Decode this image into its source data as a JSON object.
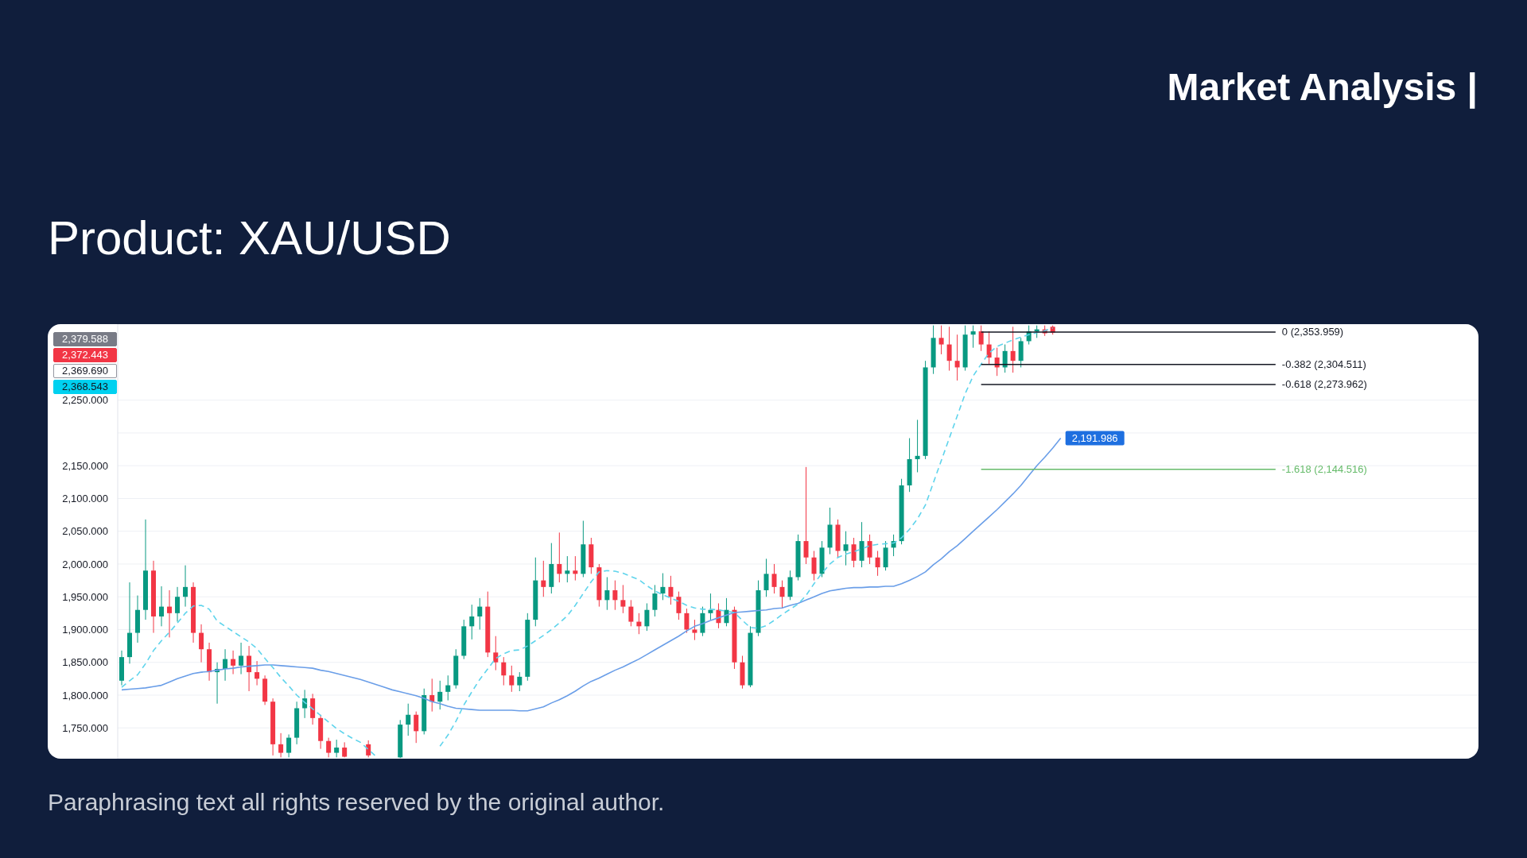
{
  "chart_data": {
    "type": "candlestick",
    "title": "Market Analysis |",
    "subtitle": "Product: XAU/USD",
    "categories": [
      null,
      null,
      null,
      null,
      null,
      null,
      null,
      null,
      null,
      null,
      null,
      null,
      null,
      null,
      null,
      null,
      null,
      null,
      null,
      null,
      null,
      null,
      null,
      null,
      null,
      null,
      null,
      null,
      null,
      null,
      null,
      null,
      null,
      null,
      null,
      null,
      null,
      null,
      null,
      null,
      null,
      null,
      null,
      null,
      null,
      null,
      null,
      null,
      null,
      null,
      null,
      null,
      null,
      null,
      null,
      null,
      null,
      null,
      null,
      null,
      null,
      null,
      null,
      null,
      null,
      null,
      null,
      null,
      null,
      null,
      null,
      null,
      null,
      null,
      null,
      null,
      null,
      null,
      null,
      null,
      null,
      null,
      null,
      null,
      null,
      null,
      null,
      null,
      null,
      null,
      null,
      null,
      null,
      null,
      null,
      null,
      null,
      null,
      null,
      null,
      null,
      null,
      null,
      null,
      null,
      null,
      null,
      null,
      null,
      null,
      null,
      null,
      null,
      null,
      null,
      null,
      null,
      null,
      null,
      null,
      null,
      null,
      null,
      null,
      null,
      null,
      null,
      null,
      null,
      null,
      null,
      null,
      null,
      null,
      null,
      null,
      null,
      null,
      null,
      null,
      null,
      null,
      null,
      null,
      null,
      null,
      null,
      null,
      null,
      null,
      null,
      null,
      null,
      null,
      null,
      null,
      null,
      null,
      null,
      null,
      null,
      null,
      null,
      null,
      null,
      null,
      null,
      null,
      null,
      null,
      null
    ],
    "ohlc": [
      [
        1822,
        1868,
        1815,
        1858
      ],
      [
        1858,
        1972,
        1848,
        1895
      ],
      [
        1895,
        1952,
        1880,
        1930
      ],
      [
        1930,
        2068,
        1915,
        1990
      ],
      [
        1990,
        2005,
        1895,
        1920
      ],
      [
        1920,
        1966,
        1905,
        1935
      ],
      [
        1935,
        1960,
        1888,
        1925
      ],
      [
        1925,
        1965,
        1912,
        1950
      ],
      [
        1950,
        1998,
        1935,
        1965
      ],
      [
        1965,
        1972,
        1880,
        1895
      ],
      [
        1895,
        1908,
        1850,
        1870
      ],
      [
        1870,
        1880,
        1822,
        1835
      ],
      [
        1835,
        1850,
        1787,
        1840
      ],
      [
        1840,
        1870,
        1822,
        1855
      ],
      [
        1855,
        1868,
        1832,
        1845
      ],
      [
        1845,
        1880,
        1832,
        1860
      ],
      [
        1860,
        1875,
        1806,
        1835
      ],
      [
        1835,
        1852,
        1815,
        1825
      ],
      [
        1825,
        1830,
        1785,
        1790
      ],
      [
        1790,
        1795,
        1708,
        1725
      ],
      [
        1725,
        1742,
        1705,
        1712
      ],
      [
        1712,
        1740,
        1705,
        1735
      ],
      [
        1735,
        1790,
        1725,
        1780
      ],
      [
        1780,
        1808,
        1765,
        1795
      ],
      [
        1795,
        1802,
        1755,
        1765
      ],
      [
        1765,
        1770,
        1718,
        1730
      ],
      [
        1730,
        1735,
        1705,
        1712
      ],
      [
        1712,
        1732,
        1705,
        1720
      ],
      [
        1720,
        1728,
        1705,
        1706
      ],
      null,
      null,
      [
        1725,
        1731,
        1705,
        1708
      ],
      null,
      null,
      null,
      [
        1705,
        1762,
        1704,
        1755
      ],
      [
        1755,
        1787,
        1738,
        1770
      ],
      [
        1770,
        1775,
        1727,
        1745
      ],
      [
        1745,
        1810,
        1740,
        1800
      ],
      [
        1800,
        1825,
        1775,
        1790
      ],
      [
        1790,
        1822,
        1778,
        1805
      ],
      [
        1805,
        1830,
        1792,
        1815
      ],
      [
        1815,
        1870,
        1810,
        1860
      ],
      [
        1860,
        1915,
        1855,
        1905
      ],
      [
        1905,
        1938,
        1885,
        1920
      ],
      [
        1920,
        1948,
        1900,
        1935
      ],
      [
        1935,
        1958,
        1858,
        1865
      ],
      [
        1865,
        1890,
        1838,
        1850
      ],
      [
        1850,
        1858,
        1815,
        1830
      ],
      [
        1830,
        1845,
        1805,
        1815
      ],
      [
        1815,
        1835,
        1806,
        1828
      ],
      [
        1828,
        1925,
        1822,
        1915
      ],
      [
        1915,
        2010,
        1905,
        1975
      ],
      [
        1975,
        2005,
        1950,
        1965
      ],
      [
        1965,
        2032,
        1955,
        2000
      ],
      [
        2000,
        2048,
        1972,
        1985
      ],
      [
        1985,
        2012,
        1972,
        1990
      ],
      [
        1990,
        2012,
        1975,
        1985
      ],
      [
        1985,
        2066,
        1980,
        2030
      ],
      [
        2030,
        2040,
        1985,
        1995
      ],
      [
        1995,
        2000,
        1935,
        1945
      ],
      [
        1945,
        1980,
        1930,
        1960
      ],
      [
        1960,
        1975,
        1930,
        1945
      ],
      [
        1945,
        1968,
        1925,
        1935
      ],
      [
        1935,
        1945,
        1905,
        1912
      ],
      [
        1912,
        1925,
        1893,
        1905
      ],
      [
        1905,
        1940,
        1898,
        1930
      ],
      [
        1930,
        1968,
        1920,
        1955
      ],
      [
        1955,
        1986,
        1945,
        1965
      ],
      [
        1965,
        1982,
        1938,
        1950
      ],
      [
        1950,
        1958,
        1915,
        1925
      ],
      [
        1925,
        1932,
        1895,
        1900
      ],
      [
        1900,
        1915,
        1884,
        1895
      ],
      [
        1895,
        1935,
        1890,
        1925
      ],
      [
        1925,
        1955,
        1915,
        1930
      ],
      [
        1930,
        1940,
        1902,
        1910
      ],
      [
        1910,
        1948,
        1905,
        1930
      ],
      [
        1930,
        1935,
        1840,
        1850
      ],
      [
        1850,
        1860,
        1810,
        1815
      ],
      [
        1815,
        1905,
        1812,
        1895
      ],
      [
        1895,
        1975,
        1890,
        1960
      ],
      [
        1960,
        2008,
        1950,
        1985
      ],
      [
        1985,
        2000,
        1955,
        1965
      ],
      [
        1965,
        1975,
        1932,
        1950
      ],
      [
        1950,
        1990,
        1945,
        1980
      ],
      [
        1980,
        2045,
        1975,
        2035
      ],
      [
        2035,
        2148,
        2000,
        2010
      ],
      [
        2010,
        2020,
        1975,
        1985
      ],
      [
        1985,
        2035,
        1980,
        2025
      ],
      [
        2025,
        2086,
        2015,
        2060
      ],
      [
        2060,
        2068,
        2010,
        2020
      ],
      [
        2020,
        2050,
        1998,
        2030
      ],
      [
        2030,
        2040,
        1995,
        2005
      ],
      [
        2005,
        2064,
        1995,
        2035
      ],
      [
        2035,
        2045,
        2000,
        2010
      ],
      [
        2010,
        2020,
        1982,
        1995
      ],
      [
        1995,
        2035,
        1990,
        2025
      ],
      [
        2025,
        2045,
        2012,
        2035
      ],
      [
        2035,
        2130,
        2030,
        2120
      ],
      [
        2120,
        2192,
        2110,
        2160
      ],
      [
        2160,
        2220,
        2140,
        2165
      ],
      [
        2165,
        2310,
        2160,
        2300
      ],
      [
        2300,
        2364,
        2290,
        2345
      ],
      [
        2345,
        2364,
        2320,
        2335
      ],
      [
        2335,
        2362,
        2295,
        2310
      ],
      [
        2310,
        2350,
        2280,
        2300
      ],
      [
        2300,
        2364,
        2295,
        2350
      ],
      [
        2350,
        2364,
        2330,
        2355
      ],
      [
        2355,
        2364,
        2325,
        2335
      ],
      [
        2335,
        2355,
        2305,
        2315
      ],
      [
        2315,
        2330,
        2287,
        2300
      ],
      [
        2300,
        2335,
        2292,
        2325
      ],
      [
        2325,
        2362,
        2292,
        2310
      ],
      [
        2310,
        2345,
        2300,
        2340
      ],
      [
        2340,
        2364,
        2335,
        2355
      ],
      [
        2355,
        2364,
        2345,
        2358
      ],
      [
        2358,
        2364,
        2348,
        2352
      ],
      [
        2362,
        2364,
        2350,
        2353
      ],
      null,
      null,
      null,
      null,
      null,
      null,
      null,
      null,
      null,
      null,
      null,
      null,
      null,
      null,
      null,
      null,
      null,
      null,
      null,
      null,
      null,
      null,
      null,
      null,
      null,
      null,
      null,
      null,
      null,
      null,
      null,
      null,
      null,
      null,
      null,
      null,
      null,
      null,
      null,
      null,
      null,
      null,
      null,
      null,
      null,
      null,
      null,
      null,
      null,
      null,
      null,
      null,
      null
    ],
    "series": [
      {
        "type": "line",
        "color": "#6a9ee8",
        "values": [
          1808,
          1809,
          1810,
          1811,
          1813,
          1815,
          1820,
          1825,
          1829,
          1833,
          1835,
          1836,
          1838,
          1840,
          1841,
          1843,
          1844,
          1845,
          1846,
          1846,
          1845,
          1844,
          1843,
          1842,
          1841,
          1838,
          1836,
          1833,
          1830,
          1827,
          1824,
          1820,
          1816,
          1812,
          1808,
          1805,
          1802,
          1799,
          1795,
          1790,
          1787,
          1783,
          1780,
          1779,
          1778,
          1777,
          1777,
          1777,
          1777,
          1777,
          1776,
          1776,
          1779,
          1782,
          1788,
          1793,
          1799,
          1806,
          1814,
          1821,
          1826,
          1832,
          1838,
          1843,
          1849,
          1855,
          1862,
          1869,
          1876,
          1883,
          1890,
          1898,
          1905,
          1909,
          1914,
          1918,
          1922,
          1926,
          1927,
          1928,
          1929,
          1930,
          1932,
          1933,
          1937,
          1940,
          1945,
          1950,
          1955,
          1959,
          1961,
          1963,
          1964,
          1964,
          1965,
          1965,
          1966,
          1966,
          1970,
          1975,
          1981,
          1988,
          1999,
          2008,
          2019,
          2028,
          2039,
          2050,
          2061,
          2072,
          2083,
          2095,
          2107,
          2120,
          2135,
          2150,
          2163,
          2177,
          2191.986,
          null,
          null,
          null,
          null,
          null,
          null,
          null,
          null,
          null,
          null,
          null,
          null,
          null,
          null,
          null,
          null,
          null,
          null,
          null,
          null,
          null,
          null,
          null,
          null,
          null,
          null,
          null,
          null,
          null,
          null,
          null,
          null,
          null,
          null,
          null,
          null,
          null,
          null,
          null,
          null,
          null,
          null,
          null,
          null,
          null,
          null,
          null,
          null,
          null,
          null,
          null,
          null
        ],
        "value_labels": [
          null,
          null,
          null,
          null,
          null,
          null,
          null,
          null,
          null,
          null,
          null,
          null,
          null,
          null,
          null,
          null,
          null,
          null,
          null,
          null,
          null,
          null,
          null,
          null,
          null,
          null,
          null,
          null,
          null,
          null,
          null,
          null,
          null,
          null,
          null,
          null,
          null,
          null,
          null,
          null,
          null,
          null,
          null,
          null,
          null,
          null,
          null,
          null,
          null,
          null,
          null,
          null,
          null,
          null,
          null,
          null,
          null,
          null,
          null,
          null,
          null,
          null,
          null,
          null,
          null,
          null,
          null,
          null,
          null,
          null,
          null,
          null,
          null,
          null,
          null,
          null,
          null,
          null,
          null,
          null,
          null,
          null,
          null,
          null,
          null,
          null,
          null,
          null,
          null,
          null,
          null,
          null,
          null,
          null,
          null,
          null,
          null,
          null,
          null,
          null,
          null,
          null,
          null,
          null,
          null,
          null,
          null,
          null,
          null,
          null,
          null,
          null,
          null,
          null,
          null,
          null,
          null,
          null,
          "2,191.986",
          null,
          null,
          null,
          null,
          null,
          null,
          null,
          null,
          null,
          null,
          null,
          null,
          null,
          null,
          null,
          null,
          null,
          null,
          null,
          null,
          null,
          null,
          null,
          null,
          null,
          null,
          null,
          null,
          null,
          null,
          null,
          null,
          null,
          null,
          null,
          null,
          null,
          null,
          null,
          null,
          null,
          null,
          null,
          null,
          null,
          null,
          null,
          null,
          null,
          null,
          null,
          null
        ]
      },
      {
        "type": "line",
        "color": "#5fd4ec",
        "line_style": "dashed",
        "values": [
          1812,
          1822,
          1831,
          1848,
          1868,
          1883,
          1896,
          1910,
          1925,
          1936,
          1937,
          1931,
          1913,
          1905,
          1897,
          1889,
          1881,
          1871,
          1856,
          1842,
          1827,
          1814,
          1800,
          1789,
          1779,
          1769,
          1759,
          1749,
          1741,
          1734,
          1728,
          1717,
          1706,
          null,
          null,
          null,
          null,
          null,
          null,
          null,
          1722,
          1739,
          1760,
          1785,
          1805,
          1824,
          1840,
          1856,
          1863,
          1868,
          1869,
          1875,
          1883,
          1891,
          1900,
          1910,
          1921,
          1937,
          1955,
          1973,
          1988,
          1990,
          1989,
          1986,
          1981,
          1976,
          1967,
          1959,
          1953,
          1948,
          1943,
          1937,
          1933,
          1931,
          1931,
          1930,
          1928,
          1926,
          1914,
          1903,
          1902,
          1906,
          1914,
          1923,
          1931,
          1939,
          1952,
          1970,
          1986,
          2000,
          2010,
          2015,
          2019,
          2023,
          2028,
          2030,
          2031,
          2032,
          2040,
          2053,
          2069,
          2090,
          2124,
          2158,
          2192,
          2226,
          2260,
          2287,
          2305,
          2322,
          2332,
          2337,
          2342,
          2346,
          2350,
          2353,
          2356,
          2360,
          null,
          null,
          null,
          null,
          null,
          null,
          null,
          null,
          null,
          null,
          null,
          null,
          null,
          null,
          null,
          null,
          null,
          null,
          null,
          null,
          null,
          null,
          null,
          null,
          null,
          null,
          null,
          null,
          null,
          null,
          null,
          null,
          null,
          null,
          null,
          null,
          null,
          null,
          null,
          null,
          null,
          null,
          null,
          null,
          null,
          null,
          null,
          null,
          null,
          null,
          null,
          null,
          null
        ]
      }
    ],
    "ylim": [
      1703,
      2366
    ],
    "yticks": [
      {
        "value": 1750,
        "label": "1,750.000"
      },
      {
        "value": 1800,
        "label": "1,800.000"
      },
      {
        "value": 1850,
        "label": "1,850.000"
      },
      {
        "value": 1900,
        "label": "1,900.000"
      },
      {
        "value": 1950,
        "label": "1,950.000"
      },
      {
        "value": 2000,
        "label": "2,000.000"
      },
      {
        "value": 2050,
        "label": "2,050.000"
      },
      {
        "value": 2100,
        "label": "2,100.000"
      },
      {
        "value": 2150,
        "label": "2,150.000"
      },
      {
        "value": 2200,
        "label": null
      },
      {
        "value": 2250,
        "label": "2,250.000"
      }
    ],
    "grid": "y",
    "tick_labels": "y",
    "ref_lines": [
      {
        "axis": "y",
        "value": 2353.959,
        "label": "0 (2,353.959)",
        "color": "#131722"
      },
      {
        "axis": "y",
        "value": 2304.511,
        "label": "-0.382 (2,304.511)",
        "color": "#131722"
      },
      {
        "axis": "y",
        "value": 2273.962,
        "label": "-0.618 (2,273.962)",
        "color": "#131722"
      },
      {
        "axis": "y",
        "value": 2144.516,
        "label": "-1.618 (2,144.516)",
        "color": "#66bb6a"
      }
    ],
    "annotations": [
      "Paraphrasing text all rights reserved by the original author.",
      "2,379.588",
      "2,372.443",
      "2,369.690",
      "2,368.543"
    ]
  }
}
